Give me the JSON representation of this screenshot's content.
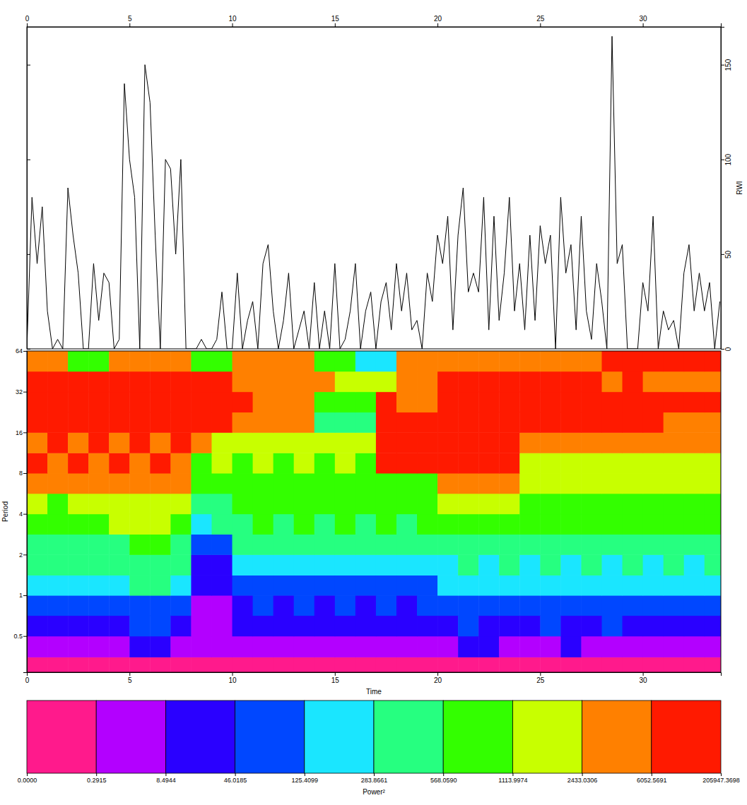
{
  "chart_data": [
    {
      "type": "line",
      "y_label": "RWI",
      "x": [
        0,
        0.25,
        0.5,
        0.75,
        1,
        1.25,
        1.5,
        1.75,
        2,
        2.25,
        2.5,
        2.75,
        3,
        3.25,
        3.5,
        3.75,
        4,
        4.25,
        4.5,
        4.75,
        5,
        5.25,
        5.5,
        5.75,
        6,
        6.25,
        6.5,
        6.75,
        7,
        7.25,
        7.5,
        7.75,
        8,
        8.25,
        8.5,
        8.75,
        9,
        9.25,
        9.5,
        9.75,
        10,
        10.25,
        10.5,
        10.75,
        11,
        11.25,
        11.5,
        11.75,
        12,
        12.25,
        12.5,
        12.75,
        13,
        13.25,
        13.5,
        13.75,
        14,
        14.25,
        14.5,
        14.75,
        15,
        15.25,
        15.5,
        15.75,
        16,
        16.25,
        16.5,
        16.75,
        17,
        17.25,
        17.5,
        17.75,
        18,
        18.25,
        18.5,
        18.75,
        19,
        19.25,
        19.5,
        19.75,
        20,
        20.25,
        20.5,
        20.75,
        21,
        21.25,
        21.5,
        21.75,
        22,
        22.25,
        22.5,
        22.75,
        23,
        23.25,
        23.5,
        23.75,
        24,
        24.25,
        24.5,
        24.75,
        25,
        25.25,
        25.5,
        25.75,
        26,
        26.25,
        26.5,
        26.75,
        27,
        27.25,
        27.5,
        27.75,
        28,
        28.25,
        28.5,
        28.75,
        29,
        29.25,
        29.5,
        29.75,
        30,
        30.25,
        30.5,
        30.75,
        31,
        31.25,
        31.5,
        31.75,
        32,
        32.25,
        32.5,
        32.75,
        33,
        33.25,
        33.5,
        33.75
      ],
      "series": [
        {
          "color": "#000000",
          "values": [
            0,
            80,
            45,
            75,
            20,
            0,
            5,
            0,
            85,
            60,
            40,
            0,
            0,
            45,
            15,
            40,
            35,
            0,
            5,
            140,
            100,
            80,
            0,
            150,
            130,
            60,
            0,
            100,
            95,
            50,
            100,
            0,
            0,
            0,
            5,
            0,
            0,
            5,
            30,
            0,
            0,
            40,
            0,
            15,
            25,
            0,
            45,
            55,
            20,
            0,
            15,
            40,
            0,
            10,
            20,
            0,
            35,
            0,
            20,
            0,
            45,
            0,
            5,
            20,
            45,
            0,
            20,
            30,
            0,
            25,
            35,
            10,
            45,
            20,
            40,
            10,
            15,
            0,
            40,
            25,
            60,
            45,
            70,
            10,
            60,
            85,
            30,
            40,
            30,
            80,
            10,
            70,
            15,
            40,
            80,
            20,
            45,
            10,
            60,
            15,
            65,
            45,
            60,
            0,
            80,
            40,
            55,
            10,
            70,
            20,
            5,
            45,
            25,
            0,
            165,
            45,
            55,
            0,
            0,
            0,
            35,
            20,
            70,
            0,
            20,
            10,
            15,
            0,
            40,
            55,
            20,
            40,
            20,
            35,
            0,
            25
          ]
        }
      ],
      "xlim": [
        0,
        33.8
      ],
      "xticks": [
        0,
        5,
        10,
        15,
        20,
        25,
        30
      ],
      "ylim": [
        0,
        170
      ],
      "yticks": [
        0,
        50,
        100,
        150
      ]
    },
    {
      "type": "heatmap",
      "x_label": "Time",
      "y_label": "Period",
      "log": "y",
      "xlim": [
        0,
        33.8
      ],
      "xticks": [
        0,
        5,
        10,
        15,
        20,
        25,
        30
      ],
      "ylim": [
        0.27,
        64
      ],
      "yticks": [
        0.5,
        1,
        2,
        4,
        8,
        16,
        32,
        64
      ],
      "time_edges": [
        0,
        1,
        2,
        3,
        4,
        5,
        6,
        7,
        8,
        9,
        10,
        11,
        12,
        13,
        14,
        15,
        16,
        17,
        18,
        19,
        20,
        21,
        22,
        23,
        24,
        25,
        26,
        27,
        28,
        29,
        30,
        31,
        32,
        33,
        33.8
      ],
      "period_edges": [
        0.27,
        0.35,
        0.5,
        0.71,
        1,
        1.41,
        2,
        2.83,
        4,
        5.66,
        8,
        11.3,
        16,
        22.6,
        32,
        45.3,
        64
      ],
      "power": [
        [
          0.1,
          0.1,
          0.1,
          0.1,
          0.1,
          0.1,
          0.1,
          0.1,
          0.1,
          0.1,
          0.1,
          0.1,
          0.1,
          0.1,
          0.1,
          0.1,
          0.1,
          0.1,
          0.1,
          0.1,
          0.1,
          0.1,
          0.1,
          0.1,
          0.1,
          0.1,
          0.1,
          0.1,
          0.1,
          0.1,
          0.1,
          0.1,
          0.1,
          0.1
        ],
        [
          4,
          4,
          4,
          4,
          4,
          25,
          25,
          4,
          4,
          4,
          4,
          4,
          4,
          4,
          4,
          4,
          4,
          4,
          4,
          4,
          4,
          25,
          25,
          4,
          4,
          4,
          25,
          4,
          4,
          4,
          4,
          4,
          4,
          4
        ],
        [
          25,
          25,
          25,
          25,
          25,
          90,
          90,
          25,
          4,
          4,
          25,
          25,
          25,
          25,
          25,
          25,
          25,
          25,
          25,
          25,
          25,
          90,
          25,
          25,
          25,
          90,
          25,
          25,
          90,
          25,
          25,
          25,
          25,
          25
        ],
        [
          90,
          90,
          90,
          90,
          90,
          90,
          90,
          90,
          4,
          4,
          25,
          90,
          25,
          90,
          25,
          90,
          25,
          90,
          25,
          90,
          90,
          90,
          90,
          90,
          90,
          90,
          90,
          90,
          90,
          90,
          90,
          90,
          90,
          90
        ],
        [
          200,
          200,
          200,
          200,
          200,
          400,
          400,
          200,
          25,
          25,
          90,
          90,
          90,
          90,
          90,
          90,
          90,
          90,
          90,
          90,
          200,
          200,
          200,
          200,
          200,
          200,
          200,
          200,
          200,
          200,
          200,
          200,
          200,
          200
        ],
        [
          400,
          400,
          400,
          400,
          400,
          400,
          400,
          400,
          25,
          25,
          200,
          200,
          200,
          200,
          200,
          200,
          200,
          200,
          200,
          200,
          200,
          400,
          200,
          400,
          200,
          400,
          200,
          400,
          200,
          400,
          200,
          400,
          200,
          400
        ],
        [
          400,
          400,
          400,
          400,
          400,
          800,
          800,
          400,
          90,
          90,
          400,
          400,
          400,
          400,
          400,
          400,
          400,
          400,
          400,
          400,
          400,
          400,
          400,
          400,
          400,
          400,
          400,
          400,
          400,
          400,
          400,
          400,
          400,
          400
        ],
        [
          800,
          800,
          800,
          800,
          1700,
          1700,
          1700,
          800,
          200,
          400,
          400,
          800,
          400,
          800,
          400,
          800,
          400,
          800,
          400,
          800,
          800,
          800,
          800,
          800,
          800,
          800,
          800,
          800,
          800,
          800,
          800,
          800,
          800,
          800
        ],
        [
          1700,
          800,
          1700,
          1700,
          1700,
          1700,
          1700,
          1700,
          400,
          400,
          800,
          800,
          800,
          800,
          800,
          800,
          800,
          800,
          800,
          800,
          1700,
          1700,
          1700,
          1700,
          800,
          800,
          800,
          800,
          800,
          800,
          800,
          800,
          800,
          800
        ],
        [
          4000,
          4000,
          4000,
          4000,
          4000,
          4000,
          4000,
          4000,
          800,
          800,
          800,
          800,
          800,
          800,
          800,
          800,
          800,
          800,
          800,
          800,
          4000,
          4000,
          4000,
          4000,
          1700,
          1700,
          1700,
          1700,
          1700,
          1700,
          1700,
          1700,
          1700,
          1700
        ],
        [
          10000,
          4000,
          10000,
          4000,
          10000,
          4000,
          10000,
          4000,
          800,
          1700,
          800,
          1700,
          800,
          1700,
          800,
          1700,
          800,
          10000,
          10000,
          10000,
          10000,
          10000,
          10000,
          10000,
          1700,
          1700,
          1700,
          1700,
          1700,
          1700,
          1700,
          1700,
          1700,
          1700
        ],
        [
          4000,
          10000,
          4000,
          10000,
          4000,
          10000,
          4000,
          10000,
          4000,
          1700,
          1700,
          1700,
          1700,
          1700,
          1700,
          1700,
          1700,
          10000,
          10000,
          10000,
          10000,
          10000,
          10000,
          10000,
          4000,
          4000,
          4000,
          4000,
          4000,
          4000,
          4000,
          4000,
          4000,
          4000
        ],
        [
          10000,
          10000,
          10000,
          10000,
          10000,
          10000,
          10000,
          10000,
          10000,
          10000,
          4000,
          4000,
          4000,
          4000,
          400,
          400,
          400,
          10000,
          10000,
          10000,
          10000,
          10000,
          10000,
          10000,
          10000,
          10000,
          10000,
          10000,
          10000,
          10000,
          10000,
          4000,
          4000,
          4000
        ],
        [
          10000,
          10000,
          10000,
          10000,
          10000,
          10000,
          10000,
          10000,
          10000,
          10000,
          10000,
          4000,
          4000,
          4000,
          800,
          800,
          800,
          10000,
          4000,
          4000,
          10000,
          10000,
          10000,
          10000,
          10000,
          10000,
          10000,
          10000,
          10000,
          10000,
          10000,
          10000,
          10000,
          10000
        ],
        [
          10000,
          10000,
          10000,
          10000,
          10000,
          10000,
          10000,
          10000,
          10000,
          10000,
          4000,
          4000,
          4000,
          4000,
          4000,
          1700,
          1700,
          1700,
          4000,
          4000,
          10000,
          10000,
          10000,
          10000,
          10000,
          10000,
          10000,
          10000,
          4000,
          10000,
          4000,
          4000,
          4000,
          4000
        ],
        [
          4000,
          4000,
          800,
          800,
          4000,
          4000,
          4000,
          4000,
          800,
          800,
          4000,
          4000,
          4000,
          4000,
          800,
          800,
          200,
          200,
          4000,
          4000,
          4000,
          4000,
          4000,
          4000,
          4000,
          4000,
          4000,
          4000,
          10000,
          10000,
          10000,
          10000,
          10000,
          10000
        ]
      ],
      "colorbar": {
        "label": "Power²",
        "colors": [
          "#ff1a8c",
          "#b300ff",
          "#2a00ff",
          "#0047ff",
          "#1ae6ff",
          "#26ff80",
          "#33ff00",
          "#c8ff00",
          "#ff8000",
          "#ff1a00"
        ],
        "ticks": [
          {
            "value": 0,
            "label": "0.0000"
          },
          0.2915,
          8.4944,
          46.0185,
          125.4099,
          283.8661,
          {
            "value": 568.059,
            "label": "568.0590"
          },
          1113.9974,
          2433.0306,
          6052.5691,
          205947.3698
        ]
      }
    }
  ]
}
